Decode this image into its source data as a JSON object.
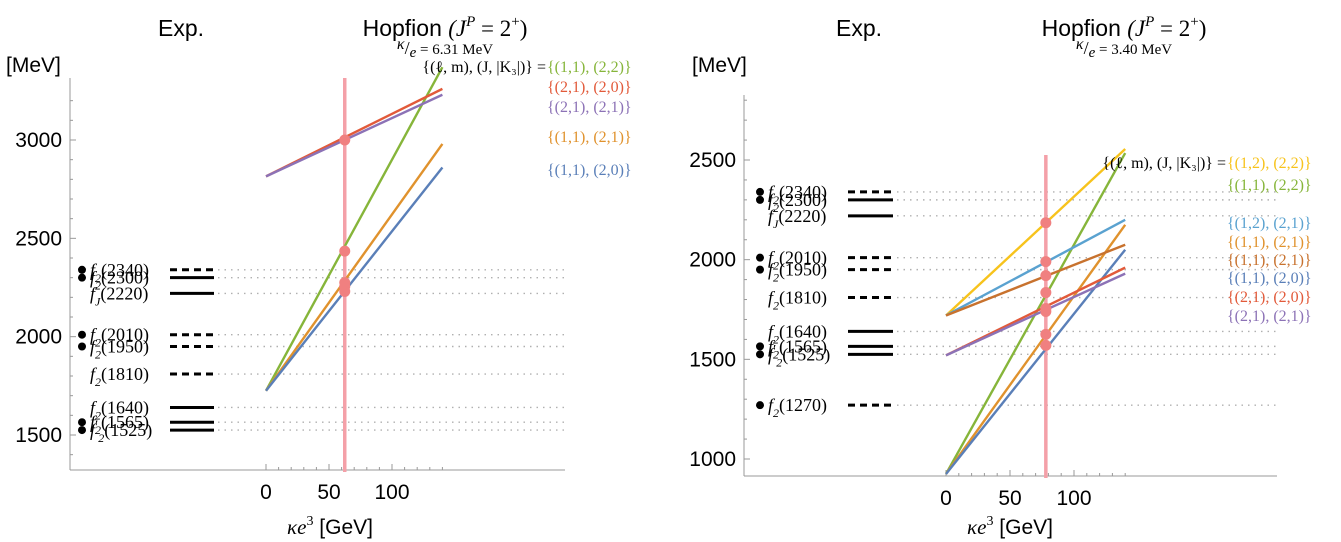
{
  "chart_data": [
    {
      "type": "line",
      "exp_label": "Exp.",
      "title": "Hopfion",
      "title_math": "(J",
      "title_sup_p": "P",
      "title_math_end": " = 2",
      "title_sup_plus": "+",
      "title_close": ")",
      "ratio_prefix": "κ",
      "ratio_sep": "/",
      "ratio_e": "e",
      "ratio_value": "= 6.31 MeV",
      "ylabel": "[MeV]",
      "xlabel_math": "κe",
      "xlabel_sup": "3",
      "xlabel_unit": " [GeV]",
      "ylim": [
        1310,
        3270
      ],
      "xlim": [
        -110,
        140
      ],
      "yticks": [
        1500,
        2000,
        2500,
        3000
      ],
      "xticks": [
        0,
        50,
        100
      ],
      "vline_x": 62.5,
      "legend_header": "{(ℓ, m), (J, |K₃|)} =",
      "series": [
        {
          "name": "{(1,1), (2,2)}",
          "color": "#86b53a",
          "x": [
            0,
            140
          ],
          "y": [
            1725,
            3370
          ]
        },
        {
          "name": "{(2,1), (2,0)}",
          "color": "#e25a3a",
          "x": [
            0,
            140
          ],
          "y": [
            2815,
            3260
          ]
        },
        {
          "name": "{(2,1), (2,1)}",
          "color": "#8c72b6",
          "x": [
            0,
            140
          ],
          "y": [
            2815,
            3230
          ]
        },
        {
          "name": "{(1,1), (2,1)}",
          "color": "#e0922d",
          "x": [
            0,
            140
          ],
          "y": [
            1725,
            2980
          ]
        },
        {
          "name": "{(1,1), (2,0)}",
          "color": "#5a7fb8",
          "x": [
            0,
            140
          ],
          "y": [
            1725,
            2860
          ]
        }
      ],
      "markers_y": [
        3000,
        2435,
        2275,
        2255,
        2230
      ],
      "exp_states": [
        {
          "name": "f",
          "sub": "2",
          "mass": "(2340)",
          "y": 2340,
          "bullet": true,
          "line": "dashed"
        },
        {
          "name": "f",
          "sub": "2",
          "mass": "(2300)",
          "y": 2300,
          "bullet": true,
          "line": "solid"
        },
        {
          "name": "f",
          "sub": "J",
          "mass": "(2220)",
          "y": 2220,
          "bullet": false,
          "line": "solid"
        },
        {
          "name": "f",
          "sub": "2",
          "mass": "(2010)",
          "y": 2010,
          "bullet": true,
          "line": "dashed"
        },
        {
          "name": "f",
          "sub": "2",
          "mass": "(1950)",
          "y": 1950,
          "bullet": true,
          "line": "dashed"
        },
        {
          "name": "f",
          "sub": "2",
          "mass": "(1810)",
          "y": 1810,
          "bullet": false,
          "line": "dashed"
        },
        {
          "name": "f",
          "sub": "2",
          "mass": "(1640)",
          "y": 1640,
          "bullet": false,
          "line": "solid"
        },
        {
          "name": "f",
          "sub": "2",
          "mass": "(1565)",
          "y": 1565,
          "bullet": true,
          "line": "solid"
        },
        {
          "name": "f",
          "sub": "2",
          "prime": true,
          "mass": "(1525)",
          "y": 1525,
          "bullet": true,
          "line": "solid"
        }
      ]
    },
    {
      "type": "line",
      "exp_label": "Exp.",
      "title": "Hopfion",
      "title_math": "(J",
      "title_sup_p": "P",
      "title_math_end": " = 2",
      "title_sup_plus": "+",
      "title_close": ")",
      "ratio_prefix": "κ",
      "ratio_sep": "/",
      "ratio_e": "e",
      "ratio_value": "= 3.40 MeV",
      "ylabel": "[MeV]",
      "xlabel_math": "κe",
      "xlabel_sup": "3",
      "xlabel_unit": " [GeV]",
      "ylim": [
        920,
        2860
      ],
      "xlim": [
        -110,
        140
      ],
      "yticks": [
        1000,
        1500,
        2000,
        2500
      ],
      "xticks": [
        0,
        50,
        100
      ],
      "vline_x": 78,
      "legend_header": "{(ℓ, m), (J, |K₃|)} =",
      "series": [
        {
          "name": "{(1,2), (2,2)}",
          "color": "#f7c31c",
          "x": [
            0,
            140
          ],
          "y": [
            1720,
            2555
          ]
        },
        {
          "name": "{(1,1), (2,2)}",
          "color": "#86b53a",
          "x": [
            0,
            140
          ],
          "y": [
            925,
            2535
          ]
        },
        {
          "name": "{(1,2), (2,1)}",
          "color": "#5aa2d0",
          "x": [
            0,
            140
          ],
          "y": [
            1720,
            2200
          ]
        },
        {
          "name": "{(1,1), (2,1)}",
          "color": "#e0922d",
          "x": [
            0,
            140
          ],
          "y": [
            925,
            2175
          ]
        },
        {
          "name": "{(1,1), (2,1)}",
          "color": "#c8722e",
          "x": [
            0,
            140
          ],
          "y": [
            1720,
            2075
          ]
        },
        {
          "name": "{(1,1), (2,0)}",
          "color": "#5a7fb8",
          "x": [
            0,
            140
          ],
          "y": [
            925,
            2050
          ]
        },
        {
          "name": "{(2,1), (2,0)}",
          "color": "#e25a3a",
          "x": [
            0,
            140
          ],
          "y": [
            1520,
            1960
          ]
        },
        {
          "name": "{(2,1), (2,1)}",
          "color": "#8c72b6",
          "x": [
            0,
            140
          ],
          "y": [
            1520,
            1930
          ]
        }
      ],
      "markers_y": [
        2185,
        1990,
        1920,
        1835,
        1755,
        1740,
        1625,
        1570
      ],
      "exp_states": [
        {
          "name": "f",
          "sub": "2",
          "mass": "(2340)",
          "y": 2340,
          "bullet": true,
          "line": "dashed"
        },
        {
          "name": "f",
          "sub": "2",
          "mass": "(2300)",
          "y": 2300,
          "bullet": true,
          "line": "solid"
        },
        {
          "name": "f",
          "sub": "J",
          "mass": "(2220)",
          "y": 2220,
          "bullet": false,
          "line": "solid"
        },
        {
          "name": "f",
          "sub": "2",
          "mass": "(2010)",
          "y": 2010,
          "bullet": true,
          "line": "dashed"
        },
        {
          "name": "f",
          "sub": "2",
          "mass": "(1950)",
          "y": 1950,
          "bullet": true,
          "line": "dashed"
        },
        {
          "name": "f",
          "sub": "2",
          "mass": "(1810)",
          "y": 1810,
          "bullet": false,
          "line": "dashed"
        },
        {
          "name": "f",
          "sub": "2",
          "mass": "(1640)",
          "y": 1640,
          "bullet": false,
          "line": "solid"
        },
        {
          "name": "f",
          "sub": "2",
          "mass": "(1565)",
          "y": 1565,
          "bullet": true,
          "line": "solid"
        },
        {
          "name": "f",
          "sub": "2",
          "prime": true,
          "mass": "(1525)",
          "y": 1525,
          "bullet": true,
          "line": "solid"
        },
        {
          "name": "f",
          "sub": "2",
          "mass": "(1270)",
          "y": 1270,
          "bullet": true,
          "line": "dashed"
        }
      ]
    }
  ],
  "colors": {
    "marker": "#f08080",
    "vline": "#f4a0a8",
    "axis": "#999999",
    "dotted": "#b0b0b0"
  }
}
